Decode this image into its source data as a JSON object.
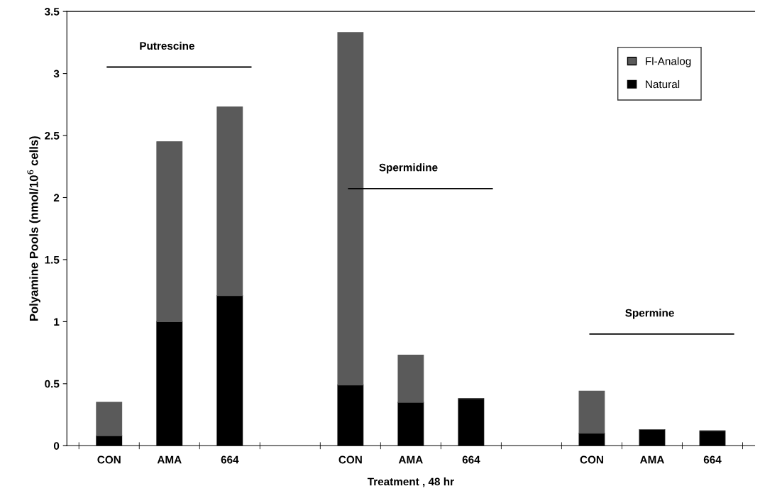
{
  "chart_data": {
    "type": "bar",
    "stacked": true,
    "xlabel": "Treatment , 48 hr",
    "ylabel": "Polyamine Pools (nmol/10$^{6}$ cells)",
    "categories": [
      "CON",
      "AMA",
      "664",
      null,
      "CON",
      "AMA",
      "664",
      null,
      "CON",
      "AMA",
      "664"
    ],
    "series": [
      {
        "name": "Natural",
        "color": "#000000",
        "values": [
          0.08,
          1.0,
          1.21,
          null,
          0.49,
          0.35,
          0.38,
          null,
          0.1,
          0.13,
          0.12
        ]
      },
      {
        "name": "Fl-Analog",
        "color": "#5a5a5a",
        "values": [
          0.27,
          1.45,
          1.52,
          null,
          2.84,
          0.38,
          0,
          null,
          0.34,
          0,
          0
        ]
      }
    ],
    "ylim": [
      0,
      3.5
    ],
    "yticks": [
      0,
      0.5,
      1,
      1.5,
      2,
      2.5,
      3,
      3.5
    ],
    "annotations": [
      "Putrescine",
      "Spermidine",
      "Spermine"
    ],
    "legend": "top right",
    "grid": false
  }
}
